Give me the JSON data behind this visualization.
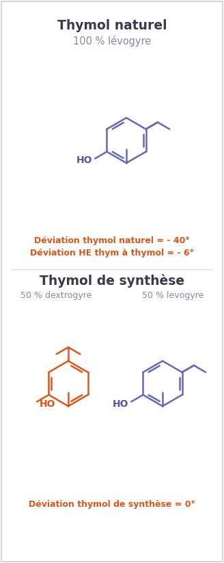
{
  "title1": "Thymol naturel",
  "subtitle1": "100 % lévogyre",
  "title2": "Thymol de synthèse",
  "subtitle2_left": "50 % dextrogyre",
  "subtitle2_right": "50 % levogyre",
  "deviation1_line1": "Déviation thymol naturel = - 40°",
  "deviation1_line2": "Déviation HE thym à thymol = - 6°",
  "deviation2": "Déviation thymol de synthèse = 0°",
  "color_blue": "#6666bb",
  "color_orange": "#e05515",
  "color_title": "#3a3a4a",
  "color_subtitle": "#8888aa",
  "color_ho_blue": "#5555aa",
  "color_ho_orange": "#e05515",
  "background": "#ffffff"
}
